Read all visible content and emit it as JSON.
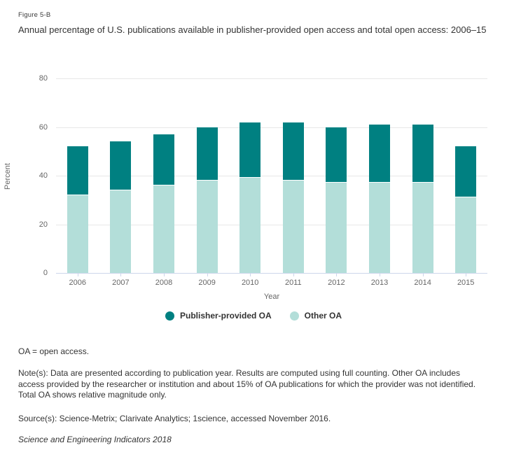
{
  "figure": {
    "label": "Figure 5-B",
    "title": "Annual percentage of U.S. publications available in publisher-provided open access and total open access: 2006–15"
  },
  "chart_data": {
    "type": "bar",
    "stacked": true,
    "categories": [
      "2006",
      "2007",
      "2008",
      "2009",
      "2010",
      "2011",
      "2012",
      "2013",
      "2014",
      "2015"
    ],
    "series": [
      {
        "name": "Publisher-provided OA",
        "color": "#008081",
        "values": [
          20,
          20,
          21,
          22,
          23,
          24,
          23,
          24,
          24,
          21
        ]
      },
      {
        "name": "Other OA",
        "color": "#b3ded9",
        "values": [
          32,
          34,
          36,
          38,
          39,
          38,
          37,
          37,
          37,
          31
        ]
      }
    ],
    "stack_totals": [
      52,
      54,
      57,
      60,
      62,
      62,
      60,
      61,
      61,
      52
    ],
    "title": "Annual percentage of U.S. publications available in publisher-provided open access and total open access: 2006–15",
    "xlabel": "Year",
    "ylabel": "Percent",
    "ylim": [
      0,
      80
    ],
    "yticks": [
      0,
      20,
      40,
      60,
      80
    ],
    "grid": true,
    "legend_position": "bottom"
  },
  "notes": {
    "abbreviation": "OA = open access.",
    "note_lines": [
      "Note(s): Data are presented according to publication year. Results are computed using full counting. Other OA includes",
      "access provided by the researcher or institution and about 15% of OA publications for which the provider was not identified.",
      "Total OA shows relative magnitude only."
    ],
    "source": "Source(s): Science-Metrix; Clarivate Analytics; 1science, accessed November 2016.",
    "publication": "Science and Engineering Indicators 2018"
  },
  "colors": {
    "publisher_oa": "#008081",
    "other_oa": "#b3ded9",
    "gridline": "#e7e7e7",
    "axis_line": "#ccd6eb",
    "axis_text": "#666666",
    "text": "#333333"
  }
}
